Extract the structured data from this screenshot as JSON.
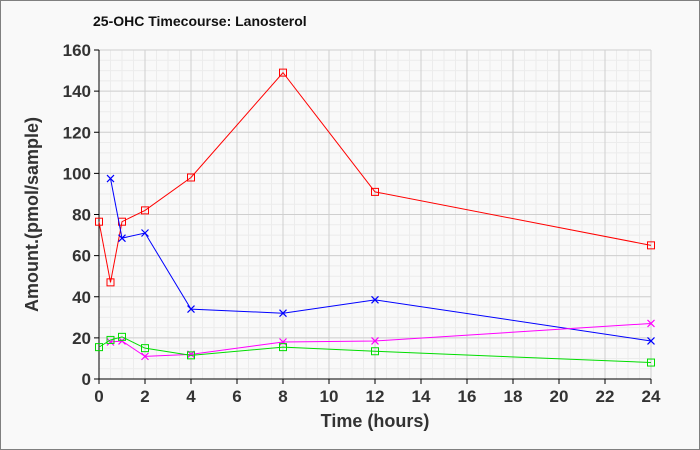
{
  "chart_data": {
    "type": "line",
    "title": "25-OHC Timecourse: Lanosterol",
    "xlabel": "Time (hours)",
    "ylabel": "Amount.(pmol/sample)",
    "xlim": [
      0,
      24
    ],
    "ylim": [
      0,
      160
    ],
    "xticks": [
      0,
      2,
      4,
      6,
      8,
      10,
      12,
      14,
      16,
      18,
      20,
      22,
      24
    ],
    "yticks": [
      0,
      20,
      40,
      60,
      80,
      100,
      120,
      140,
      160
    ],
    "grid": true,
    "legend": "none",
    "series": [
      {
        "name": "red",
        "color": "#ff0000",
        "marker": "square",
        "x": [
          0,
          0.5,
          1,
          2,
          4,
          8,
          12,
          24
        ],
        "y": [
          76.5,
          47,
          76.5,
          82,
          98,
          149,
          91,
          65
        ]
      },
      {
        "name": "blue",
        "color": "#0000ff",
        "marker": "x",
        "x": [
          0.5,
          1,
          2,
          4,
          8,
          12,
          24
        ],
        "y": [
          97.5,
          68.5,
          71,
          34,
          32,
          38.5,
          18.5
        ]
      },
      {
        "name": "magenta",
        "color": "#ff00ff",
        "marker": "x",
        "x": [
          0.5,
          1,
          2,
          4,
          8,
          12,
          24
        ],
        "y": [
          18,
          18.5,
          11,
          12,
          18,
          18.5,
          27
        ]
      },
      {
        "name": "green",
        "color": "#00dd00",
        "marker": "square",
        "x": [
          0,
          0.5,
          1,
          2,
          4,
          8,
          12,
          24
        ],
        "y": [
          15.5,
          19,
          20.5,
          15,
          11.5,
          15.5,
          13.5,
          8
        ]
      }
    ]
  }
}
